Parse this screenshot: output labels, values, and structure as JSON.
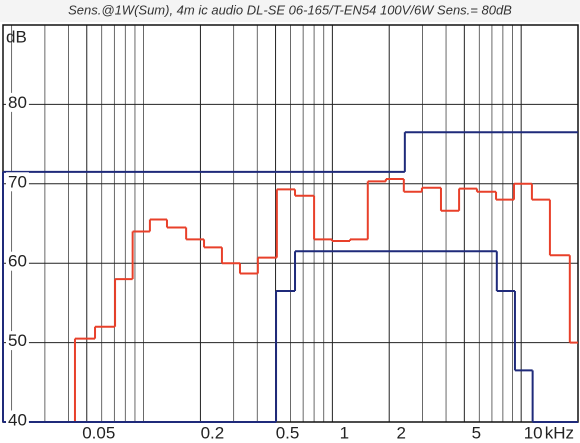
{
  "chart_data": {
    "type": "step",
    "title": "Sens.@1W(Sum), 4m ic audio DL-SE 06-165/T-EN54 100V/6W Sens.= 80dB",
    "y_label": "dB",
    "x_label": "kHz",
    "log_x": true,
    "grid": true,
    "xlim": [
      0.018,
      20
    ],
    "ylim": [
      40,
      90
    ],
    "yticks": [
      40,
      50,
      60,
      70,
      80
    ],
    "xticks": [
      0.05,
      0.2,
      0.5,
      1,
      2,
      5,
      10
    ],
    "minor_xticks": [
      0.02,
      0.03,
      0.04,
      0.06,
      0.07,
      0.08,
      0.09,
      0.1,
      0.3,
      0.4,
      0.6,
      0.7,
      0.8,
      0.9,
      3,
      4,
      6,
      7,
      8,
      9
    ],
    "series": [
      {
        "color": "#e8402a",
        "edges": [
          0.0433,
          0.0553,
          0.0706,
          0.0875,
          0.108,
          0.133,
          0.168,
          0.209,
          0.26,
          0.324,
          0.403,
          0.508,
          0.634,
          0.8,
          0.995,
          1.24,
          1.54,
          1.92,
          2.39,
          2.98,
          3.76,
          4.69,
          5.83,
          7.36,
          9.16,
          11.4,
          14.2,
          18.1,
          20
        ],
        "values": [
          50.5,
          52,
          58,
          64,
          65.5,
          64.5,
          63,
          62,
          60,
          58.7,
          60.7,
          69.3,
          68.5,
          63,
          62.8,
          63,
          70.3,
          70.6,
          69,
          69.5,
          66.6,
          69.4,
          69,
          68,
          70,
          68,
          61,
          50
        ]
      },
      {
        "color": "#1f2a7a",
        "edges": [
          0.018,
          2.42,
          20
        ],
        "values": [
          71.5,
          76.5
        ]
      },
      {
        "color": "#1f2a7a",
        "edges": [
          0.018,
          0.503,
          0.634,
          7.43,
          9.27,
          11.5,
          20
        ],
        "values": [
          40,
          56.5,
          61.5,
          56.5,
          46.5,
          40
        ]
      }
    ]
  }
}
